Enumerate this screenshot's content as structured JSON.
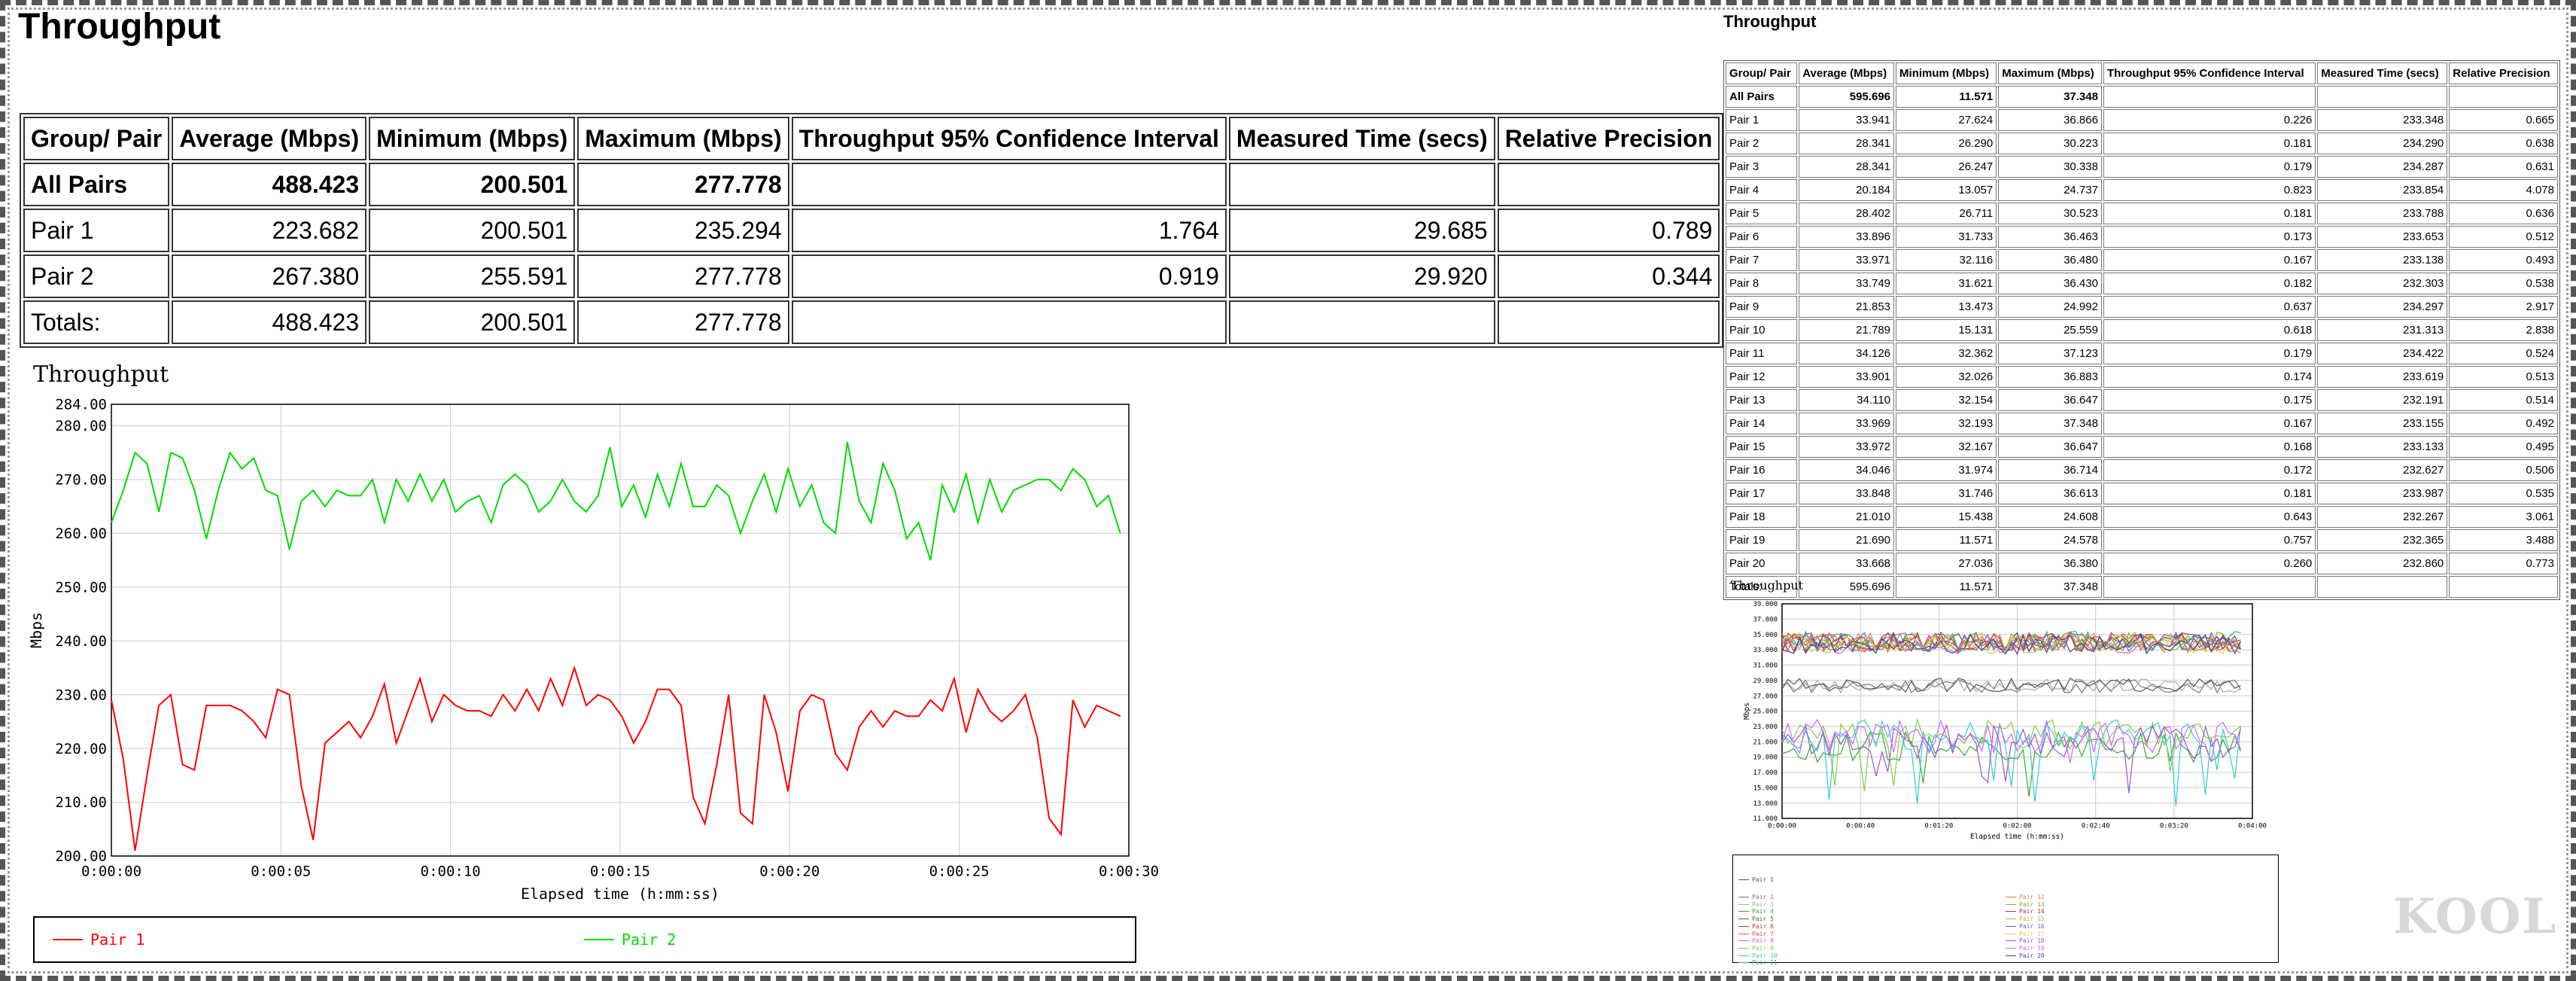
{
  "left": {
    "title": "Throughput",
    "table": {
      "headers": [
        "Group/ Pair",
        "Average (Mbps)",
        "Minimum (Mbps)",
        "Maximum (Mbps)",
        "Throughput 95% Confidence Interval",
        "Measured Time (secs)",
        "Relative Precision"
      ],
      "rows": [
        {
          "label": "All Pairs",
          "avg": "488.423",
          "min": "200.501",
          "max": "277.778",
          "ci": "",
          "time": "",
          "rp": ""
        },
        {
          "label": "Pair 1",
          "avg": "223.682",
          "min": "200.501",
          "max": "235.294",
          "ci": "1.764",
          "time": "29.685",
          "rp": "0.789"
        },
        {
          "label": "Pair 2",
          "avg": "267.380",
          "min": "255.591",
          "max": "277.778",
          "ci": "0.919",
          "time": "29.920",
          "rp": "0.344"
        },
        {
          "label": "Totals:",
          "avg": "488.423",
          "min": "200.501",
          "max": "277.778",
          "ci": "",
          "time": "",
          "rp": ""
        }
      ]
    }
  },
  "right": {
    "title": "Throughput",
    "table": {
      "headers": [
        "Group/ Pair",
        "Average (Mbps)",
        "Minimum (Mbps)",
        "Maximum (Mbps)",
        "Throughput 95% Confidence Interval",
        "Measured Time (secs)",
        "Relative Precision"
      ],
      "rows": [
        {
          "label": "All Pairs",
          "avg": "595.696",
          "min": "11.571",
          "max": "37.348",
          "ci": "",
          "time": "",
          "rp": ""
        },
        {
          "label": "Pair 1",
          "avg": "33.941",
          "min": "27.624",
          "max": "36.866",
          "ci": "0.226",
          "time": "233.348",
          "rp": "0.665"
        },
        {
          "label": "Pair 2",
          "avg": "28.341",
          "min": "26.290",
          "max": "30.223",
          "ci": "0.181",
          "time": "234.290",
          "rp": "0.638"
        },
        {
          "label": "Pair 3",
          "avg": "28.341",
          "min": "26.247",
          "max": "30.338",
          "ci": "0.179",
          "time": "234.287",
          "rp": "0.631"
        },
        {
          "label": "Pair 4",
          "avg": "20.184",
          "min": "13.057",
          "max": "24.737",
          "ci": "0.823",
          "time": "233.854",
          "rp": "4.078"
        },
        {
          "label": "Pair 5",
          "avg": "28.402",
          "min": "26.711",
          "max": "30.523",
          "ci": "0.181",
          "time": "233.788",
          "rp": "0.636"
        },
        {
          "label": "Pair 6",
          "avg": "33.896",
          "min": "31.733",
          "max": "36.463",
          "ci": "0.173",
          "time": "233.653",
          "rp": "0.512"
        },
        {
          "label": "Pair 7",
          "avg": "33.971",
          "min": "32.116",
          "max": "36.480",
          "ci": "0.167",
          "time": "233.138",
          "rp": "0.493"
        },
        {
          "label": "Pair 8",
          "avg": "33.749",
          "min": "31.621",
          "max": "36.430",
          "ci": "0.182",
          "time": "232.303",
          "rp": "0.538"
        },
        {
          "label": "Pair 9",
          "avg": "21.853",
          "min": "13.473",
          "max": "24.992",
          "ci": "0.637",
          "time": "234.297",
          "rp": "2.917"
        },
        {
          "label": "Pair 10",
          "avg": "21.789",
          "min": "15.131",
          "max": "25.559",
          "ci": "0.618",
          "time": "231.313",
          "rp": "2.838"
        },
        {
          "label": "Pair 11",
          "avg": "34.126",
          "min": "32.362",
          "max": "37.123",
          "ci": "0.179",
          "time": "234.422",
          "rp": "0.524"
        },
        {
          "label": "Pair 12",
          "avg": "33.901",
          "min": "32.026",
          "max": "36.883",
          "ci": "0.174",
          "time": "233.619",
          "rp": "0.513"
        },
        {
          "label": "Pair 13",
          "avg": "34.110",
          "min": "32.154",
          "max": "36.647",
          "ci": "0.175",
          "time": "232.191",
          "rp": "0.514"
        },
        {
          "label": "Pair 14",
          "avg": "33.969",
          "min": "32.193",
          "max": "37.348",
          "ci": "0.167",
          "time": "233.155",
          "rp": "0.492"
        },
        {
          "label": "Pair 15",
          "avg": "33.972",
          "min": "32.167",
          "max": "36.647",
          "ci": "0.168",
          "time": "233.133",
          "rp": "0.495"
        },
        {
          "label": "Pair 16",
          "avg": "34.046",
          "min": "31.974",
          "max": "36.714",
          "ci": "0.172",
          "time": "232.627",
          "rp": "0.506"
        },
        {
          "label": "Pair 17",
          "avg": "33.848",
          "min": "31.746",
          "max": "36.613",
          "ci": "0.181",
          "time": "233.987",
          "rp": "0.535"
        },
        {
          "label": "Pair 18",
          "avg": "21.010",
          "min": "15.438",
          "max": "24.608",
          "ci": "0.643",
          "time": "232.267",
          "rp": "3.061"
        },
        {
          "label": "Pair 19",
          "avg": "21.690",
          "min": "11.571",
          "max": "24.578",
          "ci": "0.757",
          "time": "232.365",
          "rp": "3.488"
        },
        {
          "label": "Pair 20",
          "avg": "33.668",
          "min": "27.036",
          "max": "36.380",
          "ci": "0.260",
          "time": "232.860",
          "rp": "0.773"
        },
        {
          "label": "Totals:",
          "avg": "595.696",
          "min": "11.571",
          "max": "37.348",
          "ci": "",
          "time": "",
          "rp": ""
        }
      ]
    }
  },
  "watermark": "KOOL",
  "chart_data": [
    {
      "type": "line",
      "title": "Throughput",
      "xlabel": "Elapsed time (h:mm:ss)",
      "ylabel": "Mbps",
      "xlim": [
        0,
        30
      ],
      "ylim": [
        200,
        284
      ],
      "yticks": [
        200,
        210,
        220,
        230,
        240,
        250,
        260,
        270,
        280,
        284
      ],
      "ytick_labels": [
        "200.00",
        "210.00",
        "220.00",
        "230.00",
        "240.00",
        "250.00",
        "260.00",
        "270.00",
        "280.00",
        "284.00"
      ],
      "xticks": [
        0,
        5,
        10,
        15,
        20,
        25,
        30
      ],
      "xtick_labels": [
        "0:00:00",
        "0:00:05",
        "0:00:10",
        "0:00:15",
        "0:00:20",
        "0:00:25",
        "0:00:30"
      ],
      "grid": true,
      "legend_position": "bottom",
      "series": [
        {
          "name": "Pair 1",
          "color": "#ff0000",
          "x": [
            0,
            0.35,
            0.7,
            1.05,
            1.4,
            1.75,
            2.1,
            2.45,
            2.8,
            3.15,
            3.5,
            3.85,
            4.2,
            4.55,
            4.9,
            5.25,
            5.6,
            5.95,
            6.3,
            6.65,
            7.0,
            7.35,
            7.7,
            8.05,
            8.4,
            8.75,
            9.1,
            9.45,
            9.8,
            10.15,
            10.5,
            10.85,
            11.2,
            11.55,
            11.9,
            12.25,
            12.6,
            12.95,
            13.3,
            13.65,
            14.0,
            14.35,
            14.7,
            15.05,
            15.4,
            15.75,
            16.1,
            16.45,
            16.8,
            17.15,
            17.5,
            17.85,
            18.2,
            18.55,
            18.9,
            19.25,
            19.6,
            19.95,
            20.3,
            20.65,
            21.0,
            21.35,
            21.7,
            22.05,
            22.4,
            22.75,
            23.1,
            23.45,
            23.8,
            24.15,
            24.5,
            24.85,
            25.2,
            25.55,
            25.9,
            26.25,
            26.6,
            26.95,
            27.3,
            27.65,
            28.0,
            28.35,
            28.7,
            29.05,
            29.4,
            29.75
          ],
          "values": [
            229,
            218,
            201,
            215,
            228,
            230,
            217,
            216,
            228,
            228,
            228,
            227,
            225,
            222,
            231,
            230,
            213,
            203,
            221,
            223,
            225,
            222,
            226,
            232,
            221,
            227,
            233,
            225,
            230,
            228,
            227,
            227,
            226,
            230,
            227,
            231,
            227,
            233,
            228,
            235,
            228,
            230,
            229,
            226,
            221,
            225,
            231,
            231,
            228,
            211,
            206,
            217,
            230,
            208,
            206,
            230,
            223,
            212,
            227,
            230,
            229,
            219,
            216,
            224,
            227,
            224,
            227,
            226,
            226,
            229,
            227,
            233,
            223,
            231,
            227,
            225,
            227,
            230,
            222,
            207,
            204,
            229,
            224,
            228,
            227,
            226
          ]
        },
        {
          "name": "Pair 2",
          "color": "#00dd00",
          "x": [
            0,
            0.35,
            0.7,
            1.05,
            1.4,
            1.75,
            2.1,
            2.45,
            2.8,
            3.15,
            3.5,
            3.85,
            4.2,
            4.55,
            4.9,
            5.25,
            5.6,
            5.95,
            6.3,
            6.65,
            7.0,
            7.35,
            7.7,
            8.05,
            8.4,
            8.75,
            9.1,
            9.45,
            9.8,
            10.15,
            10.5,
            10.85,
            11.2,
            11.55,
            11.9,
            12.25,
            12.6,
            12.95,
            13.3,
            13.65,
            14.0,
            14.35,
            14.7,
            15.05,
            15.4,
            15.75,
            16.1,
            16.45,
            16.8,
            17.15,
            17.5,
            17.85,
            18.2,
            18.55,
            18.9,
            19.25,
            19.6,
            19.95,
            20.3,
            20.65,
            21.0,
            21.35,
            21.7,
            22.05,
            22.4,
            22.75,
            23.1,
            23.45,
            23.8,
            24.15,
            24.5,
            24.85,
            25.2,
            25.55,
            25.9,
            26.25,
            26.6,
            26.95,
            27.3,
            27.65,
            28.0,
            28.35,
            28.7,
            29.05,
            29.4,
            29.75
          ],
          "values": [
            262,
            268,
            275,
            273,
            264,
            275,
            274,
            268,
            259,
            268,
            275,
            272,
            274,
            268,
            267,
            257,
            266,
            268,
            265,
            268,
            267,
            267,
            270,
            262,
            270,
            266,
            271,
            266,
            270,
            264,
            266,
            267,
            262,
            269,
            271,
            269,
            264,
            266,
            270,
            266,
            264,
            267,
            276,
            265,
            269,
            263,
            271,
            265,
            273,
            265,
            265,
            269,
            267,
            260,
            266,
            271,
            264,
            272,
            265,
            269,
            262,
            260,
            277,
            266,
            262,
            273,
            268,
            259,
            262,
            255,
            269,
            264,
            271,
            262,
            270,
            264,
            268,
            269,
            270,
            270,
            268,
            272,
            270,
            265,
            267,
            260
          ]
        }
      ]
    },
    {
      "type": "line",
      "title": "Throughput",
      "xlabel": "Elapsed time (h:mm:ss)",
      "ylabel": "Mbps",
      "xlim": [
        0,
        240
      ],
      "ylim": [
        11,
        39
      ],
      "yticks": [
        11,
        13,
        15,
        17,
        19,
        21,
        23,
        25,
        27,
        29,
        31,
        33,
        35,
        37,
        39
      ],
      "ytick_labels": [
        "11.000",
        "13.000",
        "15.000",
        "17.000",
        "19.000",
        "21.000",
        "23.000",
        "25.000",
        "27.000",
        "29.000",
        "31.000",
        "33.000",
        "35.000",
        "37.000",
        "39.000"
      ],
      "xticks": [
        0,
        40,
        80,
        120,
        160,
        200,
        240
      ],
      "xtick_labels": [
        "0:00:00",
        "0:00:40",
        "0:01:20",
        "0:02:00",
        "0:02:40",
        "0:03:20",
        "0:04:00"
      ],
      "grid": true,
      "legend_position": "bottom",
      "series": [
        {
          "name": "Pair 1",
          "color": "#555555",
          "base": 34,
          "amp": 1.3
        },
        {
          "name": "Pair 2",
          "color": "#777777",
          "base": 28.3,
          "amp": 0.9
        },
        {
          "name": "Pair 3",
          "color": "#aaaaaa",
          "base": 28.3,
          "amp": 0.9
        },
        {
          "name": "Pair 4",
          "color": "#33aa33",
          "base": 20.2,
          "amp": 2.2
        },
        {
          "name": "Pair 5",
          "color": "#446644",
          "base": 28.4,
          "amp": 0.9
        },
        {
          "name": "Pair 6",
          "color": "#aa4444",
          "base": 33.9,
          "amp": 1.3
        },
        {
          "name": "Pair 7",
          "color": "#ff4444",
          "base": 34,
          "amp": 1.3
        },
        {
          "name": "Pair 8",
          "color": "#cc66cc",
          "base": 33.7,
          "amp": 1.3
        },
        {
          "name": "Pair 9",
          "color": "#88cc44",
          "base": 21.9,
          "amp": 2.0
        },
        {
          "name": "Pair 10",
          "color": "#33cccc",
          "base": 21.8,
          "amp": 2.2
        },
        {
          "name": "Pair 11",
          "color": "#33aa88",
          "base": 34.1,
          "amp": 1.3
        },
        {
          "name": "Pair 12",
          "color": "#cc8844",
          "base": 33.9,
          "amp": 1.3
        },
        {
          "name": "Pair 13",
          "color": "#88aa33",
          "base": 34.1,
          "amp": 1.3
        },
        {
          "name": "Pair 14",
          "color": "#aa3366",
          "base": 34,
          "amp": 1.3
        },
        {
          "name": "Pair 15",
          "color": "#ccaa44",
          "base": 34,
          "amp": 1.3
        },
        {
          "name": "Pair 16",
          "color": "#6666cc",
          "base": 34,
          "amp": 1.3
        },
        {
          "name": "Pair 17",
          "color": "#ddcc55",
          "base": 33.8,
          "amp": 1.3
        },
        {
          "name": "Pair 18",
          "color": "#9955cc",
          "base": 21,
          "amp": 2.2
        },
        {
          "name": "Pair 19",
          "color": "#cc66ff",
          "base": 21.7,
          "amp": 2.2
        },
        {
          "name": "Pair 20",
          "color": "#444488",
          "base": 33.7,
          "amp": 1.3
        }
      ]
    }
  ]
}
